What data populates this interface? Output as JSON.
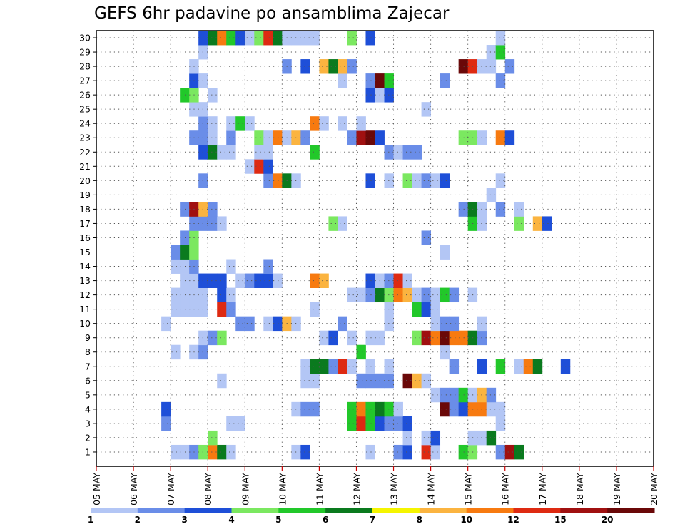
{
  "chart_data": {
    "type": "heatmap",
    "title": "GEFS 6hr padavine po ansamblima Zajecar",
    "xlabel": "",
    "ylabel": "",
    "x_categories": [
      "05 MAY",
      "06 MAY",
      "07 MAY",
      "08 MAY",
      "09 MAY",
      "10 MAY",
      "11 MAY",
      "12 MAY",
      "13 MAY",
      "14 MAY",
      "15 MAY",
      "16 MAY",
      "17 MAY",
      "18 MAY",
      "19 MAY",
      "20 MAY"
    ],
    "x_range_days": [
      5,
      20
    ],
    "step_hours": 6,
    "y_categories": [
      "1",
      "2",
      "3",
      "4",
      "5",
      "6",
      "7",
      "8",
      "9",
      "10",
      "11",
      "12",
      "13",
      "14",
      "15",
      "16",
      "17",
      "18",
      "19",
      "20",
      "21",
      "22",
      "23",
      "24",
      "25",
      "26",
      "27",
      "28",
      "29",
      "30"
    ],
    "grid": true,
    "legend_position": "bottom",
    "colorbar": {
      "labels": [
        "1",
        "2",
        "3",
        "4",
        "5",
        "6",
        "7",
        "8",
        "10",
        "12",
        "15",
        "20"
      ],
      "colors": [
        "#b3c6f5",
        "#6a8de8",
        "#1e4fd8",
        "#7be860",
        "#22c82a",
        "#0a7a1e",
        "#f5f500",
        "#fbb440",
        "#f77a10",
        "#de2a12",
        "#a01010",
        "#6a0808"
      ]
    },
    "cells": [
      [
        1,
        7.0,
        1
      ],
      [
        1,
        7.25,
        1
      ],
      [
        1,
        7.5,
        2
      ],
      [
        1,
        7.75,
        4
      ],
      [
        1,
        8.0,
        10
      ],
      [
        1,
        8.25,
        6
      ],
      [
        1,
        8.5,
        1
      ],
      [
        1,
        10.25,
        1
      ],
      [
        1,
        10.5,
        3
      ],
      [
        1,
        12.25,
        1
      ],
      [
        1,
        13.0,
        2
      ],
      [
        1,
        13.25,
        3
      ],
      [
        1,
        13.75,
        12
      ],
      [
        1,
        14.0,
        1
      ],
      [
        1,
        14.75,
        5
      ],
      [
        1,
        15.0,
        4
      ],
      [
        1,
        15.75,
        2
      ],
      [
        1,
        16.0,
        15
      ],
      [
        1,
        16.25,
        6
      ],
      [
        2,
        8.0,
        4
      ],
      [
        2,
        13.25,
        1
      ],
      [
        2,
        13.75,
        1
      ],
      [
        2,
        14.0,
        3
      ],
      [
        2,
        15.0,
        1
      ],
      [
        2,
        15.25,
        1
      ],
      [
        2,
        15.5,
        6
      ],
      [
        3,
        6.75,
        2
      ],
      [
        3,
        8.5,
        1
      ],
      [
        3,
        8.75,
        1
      ],
      [
        3,
        11.75,
        5
      ],
      [
        3,
        12.0,
        12
      ],
      [
        3,
        12.25,
        5
      ],
      [
        3,
        12.5,
        3
      ],
      [
        3,
        12.75,
        2
      ],
      [
        3,
        13.0,
        2
      ],
      [
        3,
        13.25,
        3
      ],
      [
        3,
        15.75,
        1
      ],
      [
        4,
        6.75,
        3
      ],
      [
        4,
        10.25,
        1
      ],
      [
        4,
        10.5,
        2
      ],
      [
        4,
        10.75,
        2
      ],
      [
        4,
        11.75,
        5
      ],
      [
        4,
        12.0,
        10
      ],
      [
        4,
        12.25,
        5
      ],
      [
        4,
        12.5,
        6
      ],
      [
        4,
        12.75,
        5
      ],
      [
        4,
        13.0,
        1
      ],
      [
        4,
        14.25,
        20
      ],
      [
        4,
        14.5,
        2
      ],
      [
        4,
        14.75,
        3
      ],
      [
        4,
        15.0,
        10
      ],
      [
        4,
        15.25,
        10
      ],
      [
        4,
        15.5,
        1
      ],
      [
        4,
        15.75,
        1
      ],
      [
        5,
        14.0,
        1
      ],
      [
        5,
        14.25,
        2
      ],
      [
        5,
        14.5,
        2
      ],
      [
        5,
        14.75,
        5
      ],
      [
        5,
        15.0,
        1
      ],
      [
        5,
        15.25,
        8
      ],
      [
        5,
        15.5,
        2
      ],
      [
        6,
        8.25,
        1
      ],
      [
        6,
        10.5,
        1
      ],
      [
        6,
        10.75,
        1
      ],
      [
        6,
        12.0,
        2
      ],
      [
        6,
        12.25,
        2
      ],
      [
        6,
        12.5,
        2
      ],
      [
        6,
        12.75,
        2
      ],
      [
        6,
        13.25,
        20
      ],
      [
        6,
        13.5,
        8
      ],
      [
        6,
        13.75,
        1
      ],
      [
        7,
        10.5,
        1
      ],
      [
        7,
        10.75,
        6
      ],
      [
        7,
        11.0,
        6
      ],
      [
        7,
        11.25,
        2
      ],
      [
        7,
        11.5,
        12
      ],
      [
        7,
        11.75,
        1
      ],
      [
        7,
        12.25,
        1
      ],
      [
        7,
        12.75,
        1
      ],
      [
        7,
        14.5,
        2
      ],
      [
        7,
        15.25,
        3
      ],
      [
        7,
        15.75,
        5
      ],
      [
        7,
        16.25,
        1
      ],
      [
        7,
        16.5,
        10
      ],
      [
        7,
        16.75,
        6
      ],
      [
        7,
        17.5,
        3
      ],
      [
        8,
        7.0,
        1
      ],
      [
        8,
        7.5,
        1
      ],
      [
        8,
        7.75,
        2
      ],
      [
        8,
        12.0,
        5
      ],
      [
        8,
        14.25,
        1
      ],
      [
        9,
        7.75,
        1
      ],
      [
        9,
        8.0,
        2
      ],
      [
        9,
        8.25,
        4
      ],
      [
        9,
        11.0,
        1
      ],
      [
        9,
        11.25,
        3
      ],
      [
        9,
        11.75,
        1
      ],
      [
        9,
        12.25,
        1
      ],
      [
        9,
        12.5,
        1
      ],
      [
        9,
        13.5,
        4
      ],
      [
        9,
        13.75,
        15
      ],
      [
        9,
        14.0,
        10
      ],
      [
        9,
        14.25,
        20
      ],
      [
        9,
        14.5,
        10
      ],
      [
        9,
        14.75,
        10
      ],
      [
        9,
        15.0,
        6
      ],
      [
        9,
        15.25,
        2
      ],
      [
        10,
        6.75,
        1
      ],
      [
        10,
        8.75,
        2
      ],
      [
        10,
        9.0,
        2
      ],
      [
        10,
        9.5,
        1
      ],
      [
        10,
        9.75,
        3
      ],
      [
        10,
        10.0,
        8
      ],
      [
        10,
        10.25,
        1
      ],
      [
        10,
        11.5,
        2
      ],
      [
        10,
        12.75,
        1
      ],
      [
        10,
        14.0,
        1
      ],
      [
        10,
        14.25,
        2
      ],
      [
        10,
        14.5,
        2
      ],
      [
        10,
        15.25,
        1
      ],
      [
        11,
        7.0,
        1
      ],
      [
        11,
        7.25,
        1
      ],
      [
        11,
        7.5,
        1
      ],
      [
        11,
        7.75,
        1
      ],
      [
        11,
        8.25,
        12
      ],
      [
        11,
        8.5,
        2
      ],
      [
        11,
        10.75,
        1
      ],
      [
        11,
        12.75,
        1
      ],
      [
        11,
        13.5,
        5
      ],
      [
        11,
        13.75,
        3
      ],
      [
        11,
        14.0,
        1
      ],
      [
        12,
        7.0,
        1
      ],
      [
        12,
        7.25,
        1
      ],
      [
        12,
        7.5,
        1
      ],
      [
        12,
        7.75,
        1
      ],
      [
        12,
        8.25,
        3
      ],
      [
        12,
        8.5,
        1
      ],
      [
        12,
        11.75,
        1
      ],
      [
        12,
        12.0,
        1
      ],
      [
        12,
        12.25,
        2
      ],
      [
        12,
        12.5,
        6
      ],
      [
        12,
        12.75,
        4
      ],
      [
        12,
        13.0,
        10
      ],
      [
        12,
        13.25,
        8
      ],
      [
        12,
        13.5,
        1
      ],
      [
        12,
        13.75,
        2
      ],
      [
        12,
        14.0,
        1
      ],
      [
        12,
        14.25,
        5
      ],
      [
        12,
        14.5,
        2
      ],
      [
        12,
        15.0,
        1
      ],
      [
        13,
        7.25,
        1
      ],
      [
        13,
        7.5,
        1
      ],
      [
        13,
        7.75,
        3
      ],
      [
        13,
        8.0,
        3
      ],
      [
        13,
        8.25,
        3
      ],
      [
        13,
        8.75,
        1
      ],
      [
        13,
        9.0,
        2
      ],
      [
        13,
        9.25,
        3
      ],
      [
        13,
        9.5,
        3
      ],
      [
        13,
        9.75,
        1
      ],
      [
        13,
        10.75,
        10
      ],
      [
        13,
        11.0,
        8
      ],
      [
        13,
        12.25,
        3
      ],
      [
        13,
        12.5,
        1
      ],
      [
        13,
        12.75,
        2
      ],
      [
        13,
        13.0,
        12
      ],
      [
        13,
        13.25,
        1
      ],
      [
        14,
        7.0,
        1
      ],
      [
        14,
        7.25,
        1
      ],
      [
        14,
        7.5,
        2
      ],
      [
        14,
        8.5,
        1
      ],
      [
        14,
        9.5,
        2
      ],
      [
        15,
        7.0,
        2
      ],
      [
        15,
        7.25,
        6
      ],
      [
        15,
        7.5,
        4
      ],
      [
        15,
        14.25,
        1
      ],
      [
        16,
        7.25,
        2
      ],
      [
        16,
        7.5,
        4
      ],
      [
        16,
        13.75,
        2
      ],
      [
        17,
        7.5,
        2
      ],
      [
        17,
        7.75,
        2
      ],
      [
        17,
        8.0,
        2
      ],
      [
        17,
        8.25,
        1
      ],
      [
        17,
        11.25,
        4
      ],
      [
        17,
        11.5,
        1
      ],
      [
        17,
        15.0,
        5
      ],
      [
        17,
        15.25,
        1
      ],
      [
        17,
        16.25,
        4
      ],
      [
        17,
        16.75,
        8
      ],
      [
        17,
        17.0,
        3
      ],
      [
        18,
        7.25,
        2
      ],
      [
        18,
        7.5,
        15
      ],
      [
        18,
        7.75,
        8
      ],
      [
        18,
        8.0,
        2
      ],
      [
        18,
        14.75,
        2
      ],
      [
        18,
        15.0,
        6
      ],
      [
        18,
        15.25,
        1
      ],
      [
        18,
        15.75,
        2
      ],
      [
        18,
        16.25,
        1
      ],
      [
        19,
        15.5,
        1
      ],
      [
        20,
        7.75,
        2
      ],
      [
        20,
        9.5,
        2
      ],
      [
        20,
        9.75,
        10
      ],
      [
        20,
        10.0,
        6
      ],
      [
        20,
        10.25,
        1
      ],
      [
        20,
        12.25,
        3
      ],
      [
        20,
        12.75,
        1
      ],
      [
        20,
        13.25,
        4
      ],
      [
        20,
        13.5,
        1
      ],
      [
        20,
        13.75,
        2
      ],
      [
        20,
        14.0,
        1
      ],
      [
        20,
        14.25,
        3
      ],
      [
        20,
        15.75,
        1
      ],
      [
        21,
        9.0,
        1
      ],
      [
        21,
        9.25,
        12
      ],
      [
        21,
        9.5,
        3
      ],
      [
        22,
        7.75,
        3
      ],
      [
        22,
        8.0,
        6
      ],
      [
        22,
        8.25,
        1
      ],
      [
        22,
        8.5,
        1
      ],
      [
        22,
        9.25,
        1
      ],
      [
        22,
        9.5,
        1
      ],
      [
        22,
        10.75,
        5
      ],
      [
        22,
        12.75,
        2
      ],
      [
        22,
        13.0,
        1
      ],
      [
        22,
        13.25,
        2
      ],
      [
        22,
        13.5,
        2
      ],
      [
        23,
        7.5,
        2
      ],
      [
        23,
        7.75,
        2
      ],
      [
        23,
        8.0,
        1
      ],
      [
        23,
        8.5,
        2
      ],
      [
        23,
        9.25,
        4
      ],
      [
        23,
        9.5,
        1
      ],
      [
        23,
        9.75,
        10
      ],
      [
        23,
        10.0,
        1
      ],
      [
        23,
        10.25,
        8
      ],
      [
        23,
        10.5,
        2
      ],
      [
        23,
        11.75,
        2
      ],
      [
        23,
        12.0,
        15
      ],
      [
        23,
        12.25,
        20
      ],
      [
        23,
        12.5,
        3
      ],
      [
        23,
        14.75,
        4
      ],
      [
        23,
        15.0,
        4
      ],
      [
        23,
        15.25,
        1
      ],
      [
        23,
        15.75,
        10
      ],
      [
        23,
        16.0,
        3
      ],
      [
        24,
        7.75,
        2
      ],
      [
        24,
        8.0,
        1
      ],
      [
        24,
        8.5,
        1
      ],
      [
        24,
        8.75,
        5
      ],
      [
        24,
        9.0,
        1
      ],
      [
        24,
        10.75,
        10
      ],
      [
        24,
        11.0,
        1
      ],
      [
        24,
        11.5,
        1
      ],
      [
        24,
        12.0,
        1
      ],
      [
        25,
        7.5,
        1
      ],
      [
        25,
        7.75,
        1
      ],
      [
        25,
        13.75,
        1
      ],
      [
        26,
        7.25,
        5
      ],
      [
        26,
        7.5,
        4
      ],
      [
        26,
        8.0,
        1
      ],
      [
        26,
        12.25,
        3
      ],
      [
        26,
        12.5,
        1
      ],
      [
        26,
        12.75,
        3
      ],
      [
        27,
        7.5,
        3
      ],
      [
        27,
        7.75,
        1
      ],
      [
        27,
        11.5,
        1
      ],
      [
        27,
        12.25,
        2
      ],
      [
        27,
        12.5,
        20
      ],
      [
        27,
        12.75,
        5
      ],
      [
        27,
        14.25,
        2
      ],
      [
        27,
        15.75,
        2
      ],
      [
        28,
        7.5,
        1
      ],
      [
        28,
        10.0,
        2
      ],
      [
        28,
        10.5,
        3
      ],
      [
        28,
        11.0,
        8
      ],
      [
        28,
        11.25,
        6
      ],
      [
        28,
        11.5,
        8
      ],
      [
        28,
        11.75,
        2
      ],
      [
        28,
        14.75,
        20
      ],
      [
        28,
        15.0,
        12
      ],
      [
        28,
        15.25,
        1
      ],
      [
        28,
        15.5,
        1
      ],
      [
        28,
        16.0,
        2
      ],
      [
        29,
        7.75,
        1
      ],
      [
        29,
        15.5,
        1
      ],
      [
        29,
        15.75,
        5
      ],
      [
        30,
        7.75,
        3
      ],
      [
        30,
        8.0,
        6
      ],
      [
        30,
        8.25,
        10
      ],
      [
        30,
        8.5,
        5
      ],
      [
        30,
        8.75,
        3
      ],
      [
        30,
        9.0,
        1
      ],
      [
        30,
        9.25,
        4
      ],
      [
        30,
        9.5,
        12
      ],
      [
        30,
        9.75,
        6
      ],
      [
        30,
        10.0,
        1
      ],
      [
        30,
        10.25,
        1
      ],
      [
        30,
        10.5,
        1
      ],
      [
        30,
        10.75,
        1
      ],
      [
        30,
        11.75,
        4
      ],
      [
        30,
        12.25,
        3
      ],
      [
        30,
        15.75,
        1
      ]
    ]
  }
}
